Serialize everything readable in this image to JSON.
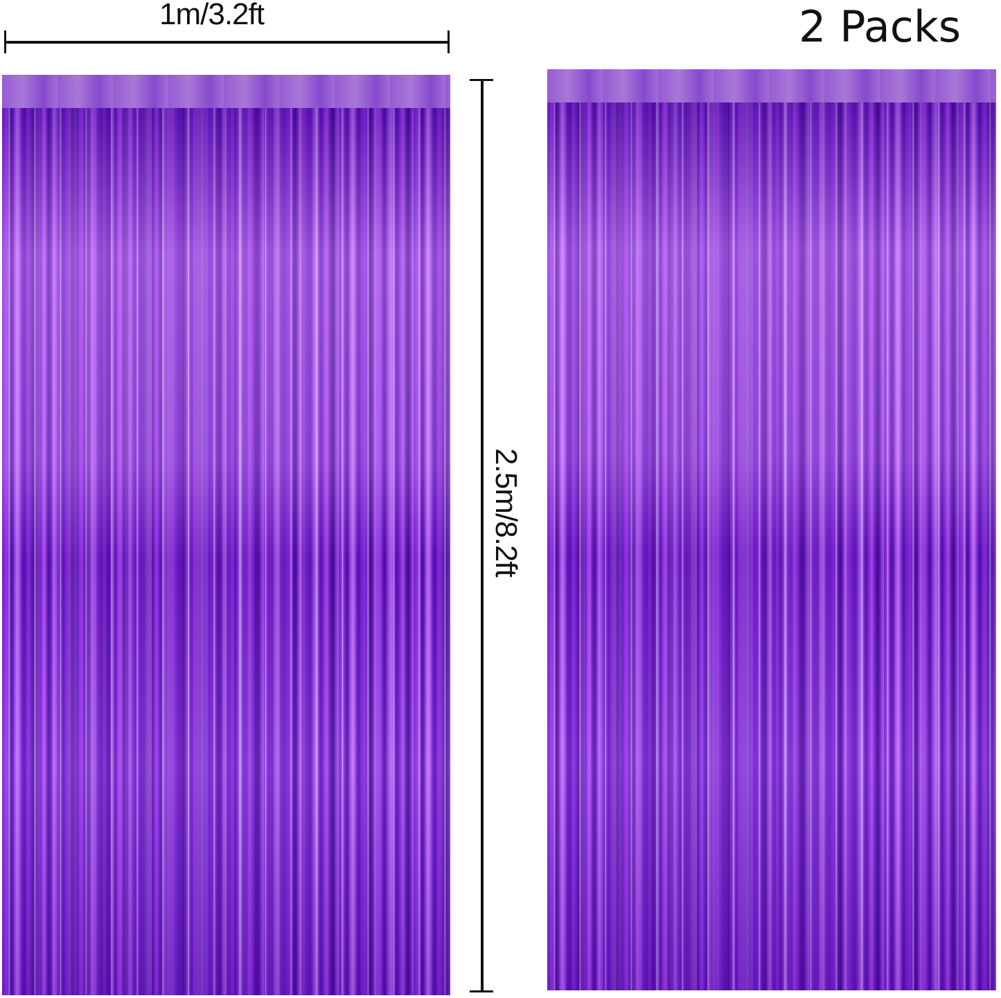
{
  "product": {
    "width_label": "1m/3.2ft",
    "height_label": "2.5m/8.2ft",
    "pack_label": "2 Packs",
    "curtain_color": "#7a20d0"
  }
}
